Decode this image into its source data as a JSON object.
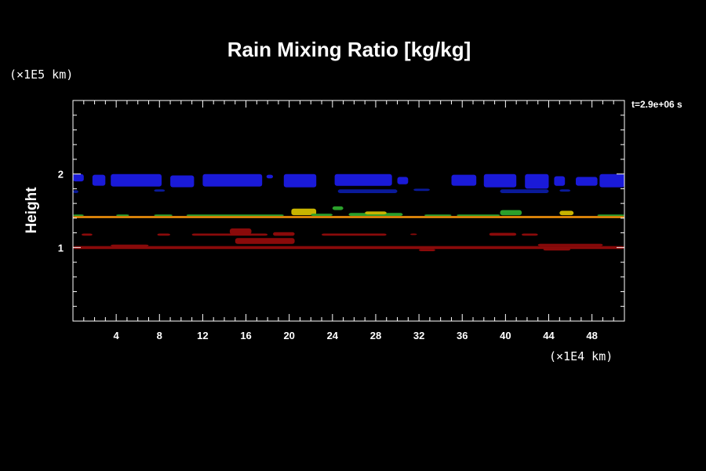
{
  "chart_data": {
    "type": "heatmap",
    "title": "Rain Mixing Ratio [kg/kg]",
    "ylabel": "Height",
    "xlabel": "",
    "x_unit": "(×1E4 km)",
    "y_unit": "(×1E5 km)",
    "time_label": "t=2.9e+06 s",
    "xlim": [
      0,
      51
    ],
    "ylim": [
      0,
      3
    ],
    "x_ticks": [
      "4",
      "8",
      "12",
      "16",
      "20",
      "24",
      "28",
      "32",
      "36",
      "40",
      "44",
      "48"
    ],
    "y_ticks": [
      "1",
      "2"
    ],
    "bands": [
      {
        "x0": 0.0,
        "x1": 1.0,
        "y0": 1.9,
        "y1": 2.0,
        "color": "#1a1ad8"
      },
      {
        "x0": 1.8,
        "x1": 3.0,
        "y0": 1.84,
        "y1": 1.99,
        "color": "#1a1ad8"
      },
      {
        "x0": 3.5,
        "x1": 8.2,
        "y0": 1.83,
        "y1": 2.0,
        "color": "#1a1ad8"
      },
      {
        "x0": 9.0,
        "x1": 11.2,
        "y0": 1.82,
        "y1": 1.98,
        "color": "#1a1ad8"
      },
      {
        "x0": 12.0,
        "x1": 17.5,
        "y0": 1.83,
        "y1": 2.0,
        "color": "#1a1ad8"
      },
      {
        "x0": 17.9,
        "x1": 18.5,
        "y0": 1.94,
        "y1": 1.99,
        "color": "#1a1ad8"
      },
      {
        "x0": 19.5,
        "x1": 22.5,
        "y0": 1.82,
        "y1": 2.0,
        "color": "#1a1ad8"
      },
      {
        "x0": 24.2,
        "x1": 29.5,
        "y0": 1.84,
        "y1": 2.0,
        "color": "#1a1ad8"
      },
      {
        "x0": 30.0,
        "x1": 31.0,
        "y0": 1.86,
        "y1": 1.96,
        "color": "#1a1ad8"
      },
      {
        "x0": 35.0,
        "x1": 37.3,
        "y0": 1.84,
        "y1": 1.99,
        "color": "#1a1ad8"
      },
      {
        "x0": 38.0,
        "x1": 41.0,
        "y0": 1.82,
        "y1": 2.0,
        "color": "#1a1ad8"
      },
      {
        "x0": 41.8,
        "x1": 44.0,
        "y0": 1.8,
        "y1": 2.0,
        "color": "#1a1ad8"
      },
      {
        "x0": 44.5,
        "x1": 45.5,
        "y0": 1.84,
        "y1": 1.97,
        "color": "#1a1ad8"
      },
      {
        "x0": 46.5,
        "x1": 48.5,
        "y0": 1.84,
        "y1": 1.96,
        "color": "#1a1ad8"
      },
      {
        "x0": 48.7,
        "x1": 51.0,
        "y0": 1.82,
        "y1": 2.0,
        "color": "#1a1ad8"
      },
      {
        "x0": 0.0,
        "x1": 0.5,
        "y0": 1.74,
        "y1": 1.78,
        "color": "#0a1a9a"
      },
      {
        "x0": 7.5,
        "x1": 8.5,
        "y0": 1.76,
        "y1": 1.79,
        "color": "#0a1a9a"
      },
      {
        "x0": 24.5,
        "x1": 30.0,
        "y0": 1.74,
        "y1": 1.79,
        "color": "#0a1a9a"
      },
      {
        "x0": 31.5,
        "x1": 33.0,
        "y0": 1.77,
        "y1": 1.8,
        "color": "#0a1a9a"
      },
      {
        "x0": 39.5,
        "x1": 44.0,
        "y0": 1.74,
        "y1": 1.79,
        "color": "#0a1a9a"
      },
      {
        "x0": 45.0,
        "x1": 46.0,
        "y0": 1.76,
        "y1": 1.79,
        "color": "#0a1a9a"
      },
      {
        "x0": 0.0,
        "x1": 51.0,
        "y0": 1.4,
        "y1": 1.43,
        "color": "#e68a0a"
      },
      {
        "x0": 0.0,
        "x1": 1.0,
        "y0": 1.43,
        "y1": 1.45,
        "color": "#2ba02b"
      },
      {
        "x0": 4.0,
        "x1": 5.2,
        "y0": 1.43,
        "y1": 1.45,
        "color": "#2ba02b"
      },
      {
        "x0": 7.5,
        "x1": 9.2,
        "y0": 1.43,
        "y1": 1.45,
        "color": "#2ba02b"
      },
      {
        "x0": 10.5,
        "x1": 19.5,
        "y0": 1.43,
        "y1": 1.45,
        "color": "#2ba02b"
      },
      {
        "x0": 20.2,
        "x1": 22.5,
        "y0": 1.44,
        "y1": 1.53,
        "color": "#c8b400"
      },
      {
        "x0": 22.0,
        "x1": 24.0,
        "y0": 1.43,
        "y1": 1.46,
        "color": "#2ba02b"
      },
      {
        "x0": 24.0,
        "x1": 25.0,
        "y0": 1.51,
        "y1": 1.56,
        "color": "#2ba02b"
      },
      {
        "x0": 25.5,
        "x1": 30.5,
        "y0": 1.43,
        "y1": 1.47,
        "color": "#2ba02b"
      },
      {
        "x0": 27.0,
        "x1": 29.0,
        "y0": 1.45,
        "y1": 1.49,
        "color": "#c8b400"
      },
      {
        "x0": 32.5,
        "x1": 35.0,
        "y0": 1.43,
        "y1": 1.45,
        "color": "#2ba02b"
      },
      {
        "x0": 35.5,
        "x1": 39.5,
        "y0": 1.43,
        "y1": 1.45,
        "color": "#2ba02b"
      },
      {
        "x0": 39.5,
        "x1": 41.5,
        "y0": 1.44,
        "y1": 1.51,
        "color": "#2ba02b"
      },
      {
        "x0": 45.0,
        "x1": 46.3,
        "y0": 1.44,
        "y1": 1.5,
        "color": "#c8b400"
      },
      {
        "x0": 48.5,
        "x1": 51.0,
        "y0": 1.43,
        "y1": 1.45,
        "color": "#2ba02b"
      },
      {
        "x0": 0.8,
        "x1": 1.8,
        "y0": 1.16,
        "y1": 1.19,
        "color": "#8a0a0a"
      },
      {
        "x0": 7.8,
        "x1": 9.0,
        "y0": 1.16,
        "y1": 1.19,
        "color": "#8a0a0a"
      },
      {
        "x0": 11.0,
        "x1": 18.0,
        "y0": 1.16,
        "y1": 1.19,
        "color": "#8a0a0a"
      },
      {
        "x0": 14.5,
        "x1": 16.5,
        "y0": 1.18,
        "y1": 1.26,
        "color": "#8a0a0a"
      },
      {
        "x0": 15.0,
        "x1": 20.5,
        "y0": 1.05,
        "y1": 1.13,
        "color": "#8a0a0a"
      },
      {
        "x0": 18.5,
        "x1": 20.5,
        "y0": 1.16,
        "y1": 1.21,
        "color": "#8a0a0a"
      },
      {
        "x0": 23.0,
        "x1": 29.0,
        "y0": 1.16,
        "y1": 1.19,
        "color": "#8a0a0a"
      },
      {
        "x0": 31.2,
        "x1": 31.8,
        "y0": 1.17,
        "y1": 1.19,
        "color": "#8a0a0a"
      },
      {
        "x0": 38.5,
        "x1": 41.0,
        "y0": 1.16,
        "y1": 1.2,
        "color": "#8a0a0a"
      },
      {
        "x0": 41.5,
        "x1": 43.0,
        "y0": 1.16,
        "y1": 1.19,
        "color": "#8a0a0a"
      },
      {
        "x0": 0.0,
        "x1": 51.0,
        "y0": 0.98,
        "y1": 1.02,
        "color": "#8a0a0a"
      },
      {
        "x0": 3.5,
        "x1": 7.0,
        "y0": 1.02,
        "y1": 1.04,
        "color": "#8a0a0a"
      },
      {
        "x0": 32.0,
        "x1": 33.5,
        "y0": 0.95,
        "y1": 0.98,
        "color": "#8a0a0a"
      },
      {
        "x0": 43.5,
        "x1": 46.0,
        "y0": 0.96,
        "y1": 0.99,
        "color": "#8a0a0a"
      },
      {
        "x0": 43.0,
        "x1": 49.0,
        "y0": 1.02,
        "y1": 1.05,
        "color": "#8a0a0a"
      }
    ]
  }
}
